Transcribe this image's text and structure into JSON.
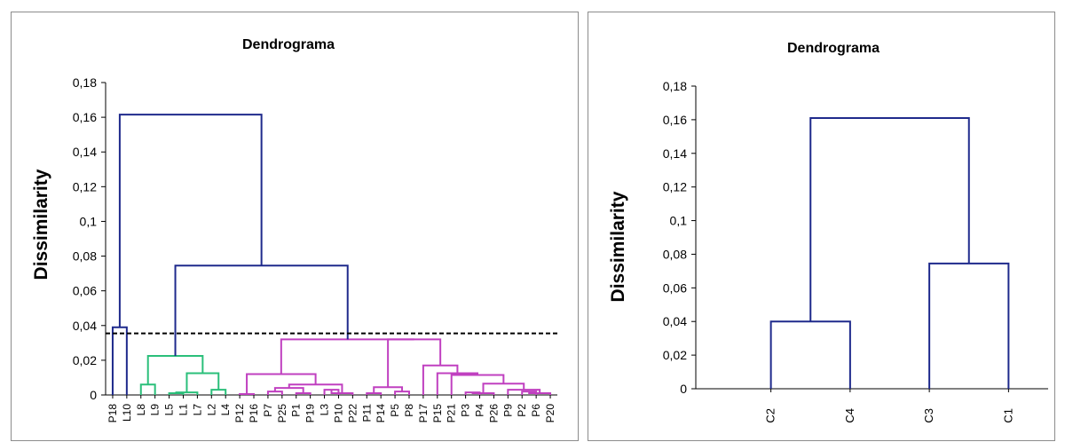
{
  "chart_data": [
    {
      "type": "dendrogram",
      "title": "Dendrograma",
      "ylabel": "Dissimilarity",
      "xlabel": "",
      "ylim": [
        0,
        0.18
      ],
      "yticks": [
        0,
        0.02,
        0.04,
        0.06,
        0.08,
        0.1,
        0.12,
        0.14,
        0.16,
        0.18
      ],
      "ytick_labels": [
        "0",
        "0,02",
        "0,04",
        "0,06",
        "0,08",
        "0,1",
        "0,12",
        "0,14",
        "0,16",
        "0,18"
      ],
      "truncation_line": 0.0355,
      "leaves": [
        "P18",
        "L10",
        "L8",
        "L9",
        "L5",
        "L1",
        "L7",
        "L2",
        "L4",
        "P12",
        "P16",
        "P7",
        "P25",
        "P1",
        "P19",
        "L3",
        "P10",
        "P22",
        "P11",
        "P14",
        "P5",
        "P8",
        "P17",
        "P15",
        "P21",
        "P3",
        "P4",
        "P26",
        "P9",
        "P2",
        "P6",
        "P20"
      ],
      "cluster_colors": {
        "C2": "#1f2a8c",
        "C4": "#2bbf7a",
        "C3": "#c040c0"
      },
      "merges": [
        {
          "a": "P18",
          "b": "L10",
          "height": 0.039,
          "cluster": "C2"
        },
        {
          "a": "L5",
          "b": "L1",
          "height": 0.001,
          "cluster": "C4"
        },
        {
          "a": "m1",
          "b": "L7",
          "height": 0.0015,
          "cluster": "C4"
        },
        {
          "a": "L2",
          "b": "L4",
          "height": 0.003,
          "cluster": "C4"
        },
        {
          "a": "m2",
          "b": "m3",
          "height": 0.0125,
          "cluster": "C4"
        },
        {
          "a": "L8",
          "b": "L9",
          "height": 0.006,
          "cluster": "C4"
        },
        {
          "a": "m5",
          "b": "m4",
          "height": 0.0225,
          "cluster": "C4"
        },
        {
          "a": "P12",
          "b": "P16",
          "height": 0.0005,
          "cluster": "C3"
        },
        {
          "a": "P7",
          "b": "P25",
          "height": 0.002,
          "cluster": "C3"
        },
        {
          "a": "P1",
          "b": "P19",
          "height": 0.001,
          "cluster": "C3"
        },
        {
          "a": "m8",
          "b": "m9",
          "height": 0.004,
          "cluster": "C3"
        },
        {
          "a": "L3",
          "b": "P10",
          "height": 0.003,
          "cluster": "C3"
        },
        {
          "a": "m11",
          "b": "P22",
          "height": 0.001,
          "cluster": "C3"
        },
        {
          "a": "m10",
          "b": "m12",
          "height": 0.006,
          "cluster": "C3"
        },
        {
          "a": "m7",
          "b": "m13",
          "height": 0.012,
          "cluster": "C3"
        },
        {
          "a": "P11",
          "b": "P14",
          "height": 0.001,
          "cluster": "C3"
        },
        {
          "a": "P5",
          "b": "P8",
          "height": 0.002,
          "cluster": "C3"
        },
        {
          "a": "m15",
          "b": "m16",
          "height": 0.0045,
          "cluster": "C3"
        },
        {
          "a": "P3",
          "b": "P4",
          "height": 0.0015,
          "cluster": "C3"
        },
        {
          "a": "m18",
          "b": "P26",
          "height": 0.001,
          "cluster": "C3"
        },
        {
          "a": "P2",
          "b": "P6",
          "height": 0.002,
          "cluster": "C3"
        },
        {
          "a": "m20",
          "b": "P20",
          "height": 0.001,
          "cluster": "C3"
        },
        {
          "a": "P9",
          "b": "m21",
          "height": 0.003,
          "cluster": "C3"
        },
        {
          "a": "m19",
          "b": "m22",
          "height": 0.0065,
          "cluster": "C3"
        },
        {
          "a": "P21",
          "b": "m23",
          "height": 0.0115,
          "cluster": "C3"
        },
        {
          "a": "P15",
          "b": "m24",
          "height": 0.0125,
          "cluster": "C3"
        },
        {
          "a": "P17",
          "b": "m25",
          "height": 0.017,
          "cluster": "C3"
        },
        {
          "a": "m17",
          "b": "m26",
          "height": 0.032,
          "cluster": "C3"
        },
        {
          "a": "m14",
          "b": "m27",
          "height": 0.032,
          "cluster": "C3"
        },
        {
          "a": "m6",
          "b": "m28",
          "height": 0.0745,
          "cluster": "top"
        },
        {
          "a": "m0",
          "b": "m29",
          "height": 0.1615,
          "cluster": "top"
        }
      ],
      "top_color": "#1f2a8c"
    },
    {
      "type": "dendrogram",
      "title": "Dendrograma",
      "ylabel": "Dissimilarity",
      "xlabel": "",
      "ylim": [
        0,
        0.18
      ],
      "yticks": [
        0,
        0.02,
        0.04,
        0.06,
        0.08,
        0.1,
        0.12,
        0.14,
        0.16,
        0.18
      ],
      "ytick_labels": [
        "0",
        "0,02",
        "0,04",
        "0,06",
        "0,08",
        "0,1",
        "0,12",
        "0,14",
        "0,16",
        "0,18"
      ],
      "leaves": [
        "C2",
        "C4",
        "C3",
        "C1"
      ],
      "merges": [
        {
          "a": "C2",
          "b": "C4",
          "height": 0.04
        },
        {
          "a": "C3",
          "b": "C1",
          "height": 0.0745
        },
        {
          "a": "m0",
          "b": "m1",
          "height": 0.161
        }
      ],
      "line_color": "#1f2a8c"
    }
  ]
}
